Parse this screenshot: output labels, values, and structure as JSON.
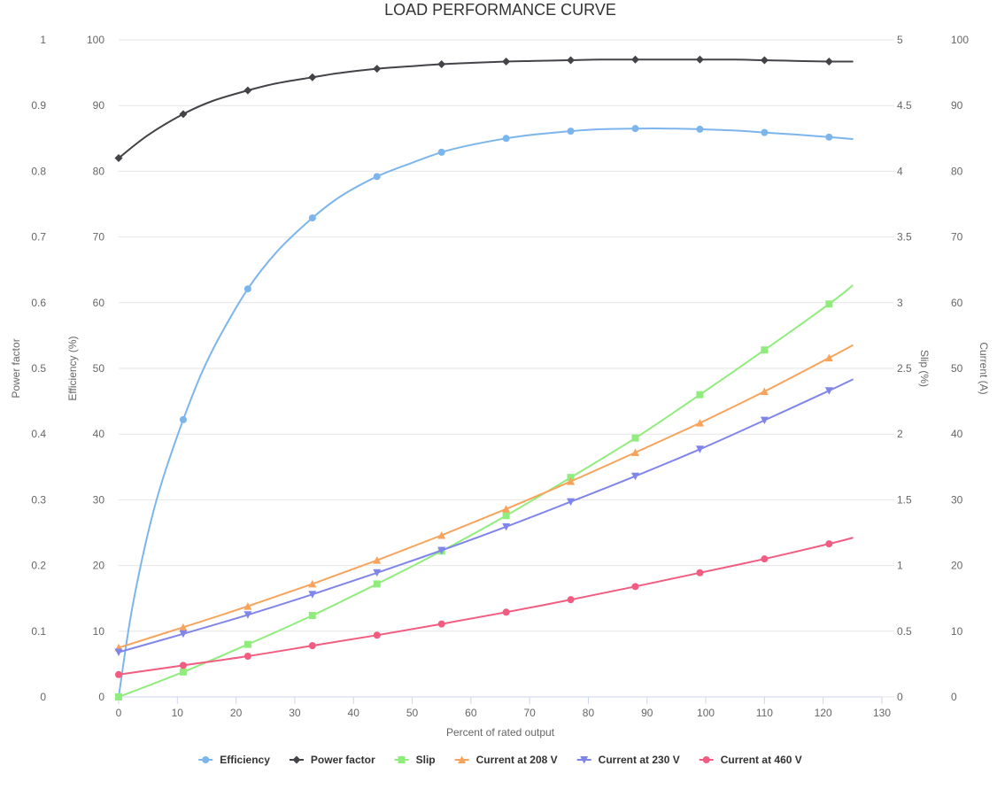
{
  "chart_data": {
    "type": "line",
    "title": "LOAD PERFORMANCE CURVE",
    "xlabel": "Percent of rated output",
    "xlim": [
      0,
      130
    ],
    "x_ticks": [
      0,
      10,
      20,
      30,
      40,
      50,
      60,
      70,
      80,
      90,
      100,
      110,
      120,
      130
    ],
    "y_axes": {
      "power_factor": {
        "label": "Power factor",
        "lim": [
          0,
          1
        ],
        "ticks": [
          "0",
          "0.1",
          "0.2",
          "0.3",
          "0.4",
          "0.5",
          "0.6",
          "0.7",
          "0.8",
          "0.9",
          "1"
        ]
      },
      "efficiency": {
        "label": "Efficiency (%)",
        "lim": [
          0,
          100
        ],
        "ticks": [
          "0",
          "10",
          "20",
          "30",
          "40",
          "50",
          "60",
          "70",
          "80",
          "90",
          "100"
        ]
      },
      "slip": {
        "label": "Slip (%)",
        "lim": [
          0,
          5
        ],
        "ticks": [
          "0",
          "0.5",
          "1",
          "1.5",
          "2",
          "2.5",
          "3",
          "3.5",
          "4",
          "4.5",
          "5"
        ]
      },
      "current": {
        "label": "Current (A)",
        "lim": [
          0,
          100
        ],
        "ticks": [
          "0",
          "10",
          "20",
          "30",
          "40",
          "50",
          "60",
          "70",
          "80",
          "90",
          "100"
        ]
      }
    },
    "grid": true,
    "legend": "bottom",
    "series": [
      {
        "name": "Efficiency",
        "axis": "efficiency",
        "color": "#7cb5ec",
        "marker": "circle",
        "points": [
          [
            0,
            0
          ],
          [
            11,
            42.2
          ],
          [
            22,
            62.1
          ],
          [
            33,
            72.9
          ],
          [
            44,
            79.2
          ],
          [
            55,
            82.9
          ],
          [
            66,
            85.0
          ],
          [
            77,
            86.1
          ],
          [
            88,
            86.5
          ],
          [
            99,
            86.4
          ],
          [
            110,
            85.9
          ],
          [
            121,
            85.2
          ]
        ],
        "curve": [
          [
            0,
            0
          ],
          [
            2,
            12
          ],
          [
            4,
            21
          ],
          [
            6,
            28.5
          ],
          [
            8,
            34.5
          ],
          [
            11,
            42.2
          ],
          [
            14,
            49
          ],
          [
            17,
            54.5
          ],
          [
            22,
            62.1
          ],
          [
            27,
            67.8
          ],
          [
            33,
            72.9
          ],
          [
            38,
            76.3
          ],
          [
            44,
            79.2
          ],
          [
            50,
            81.3
          ],
          [
            55,
            82.9
          ],
          [
            60,
            84.0
          ],
          [
            66,
            85.0
          ],
          [
            71,
            85.6
          ],
          [
            77,
            86.1
          ],
          [
            82,
            86.4
          ],
          [
            88,
            86.5
          ],
          [
            94,
            86.5
          ],
          [
            99,
            86.4
          ],
          [
            105,
            86.2
          ],
          [
            110,
            85.9
          ],
          [
            115,
            85.6
          ],
          [
            121,
            85.2
          ],
          [
            125,
            84.9
          ]
        ]
      },
      {
        "name": "Power factor",
        "axis": "power_factor",
        "color": "#434348",
        "marker": "diamond",
        "points": [
          [
            0,
            0.82
          ],
          [
            11,
            0.887
          ],
          [
            22,
            0.923
          ],
          [
            33,
            0.943
          ],
          [
            44,
            0.956
          ],
          [
            55,
            0.963
          ],
          [
            66,
            0.967
          ],
          [
            77,
            0.969
          ],
          [
            88,
            0.97
          ],
          [
            99,
            0.97
          ],
          [
            110,
            0.969
          ],
          [
            121,
            0.967
          ]
        ],
        "curve": [
          [
            0,
            0.82
          ],
          [
            5,
            0.855
          ],
          [
            11,
            0.887
          ],
          [
            16,
            0.907
          ],
          [
            22,
            0.923
          ],
          [
            27,
            0.934
          ],
          [
            33,
            0.943
          ],
          [
            38,
            0.95
          ],
          [
            44,
            0.956
          ],
          [
            50,
            0.96
          ],
          [
            55,
            0.963
          ],
          [
            60,
            0.965
          ],
          [
            66,
            0.967
          ],
          [
            71,
            0.968
          ],
          [
            77,
            0.969
          ],
          [
            82,
            0.97
          ],
          [
            88,
            0.97
          ],
          [
            94,
            0.97
          ],
          [
            99,
            0.97
          ],
          [
            105,
            0.97
          ],
          [
            110,
            0.969
          ],
          [
            115,
            0.968
          ],
          [
            121,
            0.967
          ],
          [
            125,
            0.967
          ]
        ]
      },
      {
        "name": "Slip",
        "axis": "slip",
        "color": "#90ed7d",
        "marker": "square",
        "points": [
          [
            0,
            0
          ],
          [
            11,
            0.19
          ],
          [
            22,
            0.4
          ],
          [
            33,
            0.62
          ],
          [
            44,
            0.86
          ],
          [
            55,
            1.11
          ],
          [
            66,
            1.38
          ],
          [
            77,
            1.67
          ],
          [
            88,
            1.97
          ],
          [
            99,
            2.3
          ],
          [
            110,
            2.64
          ],
          [
            121,
            2.99
          ]
        ],
        "curve": [
          [
            0,
            0
          ],
          [
            11,
            0.19
          ],
          [
            22,
            0.4
          ],
          [
            33,
            0.62
          ],
          [
            44,
            0.86
          ],
          [
            55,
            1.11
          ],
          [
            66,
            1.38
          ],
          [
            77,
            1.67
          ],
          [
            88,
            1.97
          ],
          [
            99,
            2.3
          ],
          [
            110,
            2.64
          ],
          [
            121,
            2.99
          ],
          [
            125,
            3.13
          ]
        ]
      },
      {
        "name": "Current at 208 V",
        "axis": "current",
        "color": "#f7a35c",
        "marker": "triangle",
        "points": [
          [
            0,
            7.5
          ],
          [
            11,
            10.6
          ],
          [
            22,
            13.8
          ],
          [
            33,
            17.2
          ],
          [
            44,
            20.8
          ],
          [
            55,
            24.6
          ],
          [
            66,
            28.6
          ],
          [
            77,
            32.8
          ],
          [
            88,
            37.2
          ],
          [
            99,
            41.7
          ],
          [
            110,
            46.5
          ],
          [
            121,
            51.6
          ]
        ],
        "curve": [
          [
            0,
            7.5
          ],
          [
            11,
            10.6
          ],
          [
            22,
            13.8
          ],
          [
            33,
            17.2
          ],
          [
            44,
            20.8
          ],
          [
            55,
            24.6
          ],
          [
            66,
            28.6
          ],
          [
            77,
            32.8
          ],
          [
            88,
            37.2
          ],
          [
            99,
            41.7
          ],
          [
            110,
            46.5
          ],
          [
            121,
            51.6
          ],
          [
            125,
            53.5
          ]
        ]
      },
      {
        "name": "Current at 230 V",
        "axis": "current",
        "color": "#8085e9",
        "marker": "triangle-down",
        "points": [
          [
            0,
            6.8
          ],
          [
            11,
            9.6
          ],
          [
            22,
            12.5
          ],
          [
            33,
            15.6
          ],
          [
            44,
            18.9
          ],
          [
            55,
            22.3
          ],
          [
            66,
            25.9
          ],
          [
            77,
            29.7
          ],
          [
            88,
            33.6
          ],
          [
            99,
            37.7
          ],
          [
            110,
            42.1
          ],
          [
            121,
            46.6
          ]
        ],
        "curve": [
          [
            0,
            6.8
          ],
          [
            11,
            9.6
          ],
          [
            22,
            12.5
          ],
          [
            33,
            15.6
          ],
          [
            44,
            18.9
          ],
          [
            55,
            22.3
          ],
          [
            66,
            25.9
          ],
          [
            77,
            29.7
          ],
          [
            88,
            33.6
          ],
          [
            99,
            37.7
          ],
          [
            110,
            42.1
          ],
          [
            121,
            46.6
          ],
          [
            125,
            48.3
          ]
        ]
      },
      {
        "name": "Current at 460 V",
        "axis": "current",
        "color": "#f15c80",
        "marker": "circle",
        "points": [
          [
            0,
            3.4
          ],
          [
            11,
            4.8
          ],
          [
            22,
            6.2
          ],
          [
            33,
            7.8
          ],
          [
            44,
            9.4
          ],
          [
            55,
            11.1
          ],
          [
            66,
            12.9
          ],
          [
            77,
            14.8
          ],
          [
            88,
            16.8
          ],
          [
            99,
            18.9
          ],
          [
            110,
            21.0
          ],
          [
            121,
            23.3
          ]
        ],
        "curve": [
          [
            0,
            3.4
          ],
          [
            11,
            4.8
          ],
          [
            22,
            6.2
          ],
          [
            33,
            7.8
          ],
          [
            44,
            9.4
          ],
          [
            55,
            11.1
          ],
          [
            66,
            12.9
          ],
          [
            77,
            14.8
          ],
          [
            88,
            16.8
          ],
          [
            99,
            18.9
          ],
          [
            110,
            21.0
          ],
          [
            121,
            23.3
          ],
          [
            125,
            24.2
          ]
        ]
      }
    ]
  }
}
